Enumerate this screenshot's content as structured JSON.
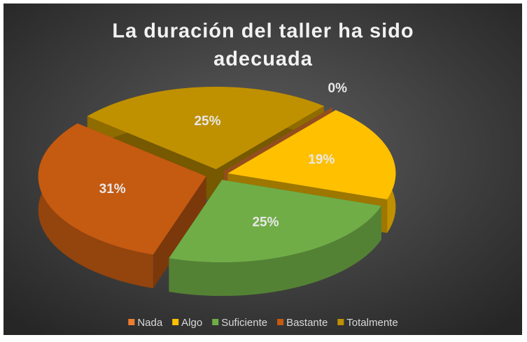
{
  "chart_data": {
    "type": "pie",
    "title_lines": [
      "La duración del taller ha sido",
      "adecuada"
    ],
    "categories": [
      "Nada",
      "Algo",
      "Suficiente",
      "Bastante",
      "Totalmente"
    ],
    "values": [
      0,
      19,
      25,
      31,
      25
    ],
    "value_labels": [
      "0%",
      "19%",
      "25%",
      "31%",
      "25%"
    ],
    "colors": [
      "#ed7d31",
      "#ffc000",
      "#70ad47",
      "#c55a11",
      "#bf9000"
    ],
    "legend": "bottom"
  }
}
